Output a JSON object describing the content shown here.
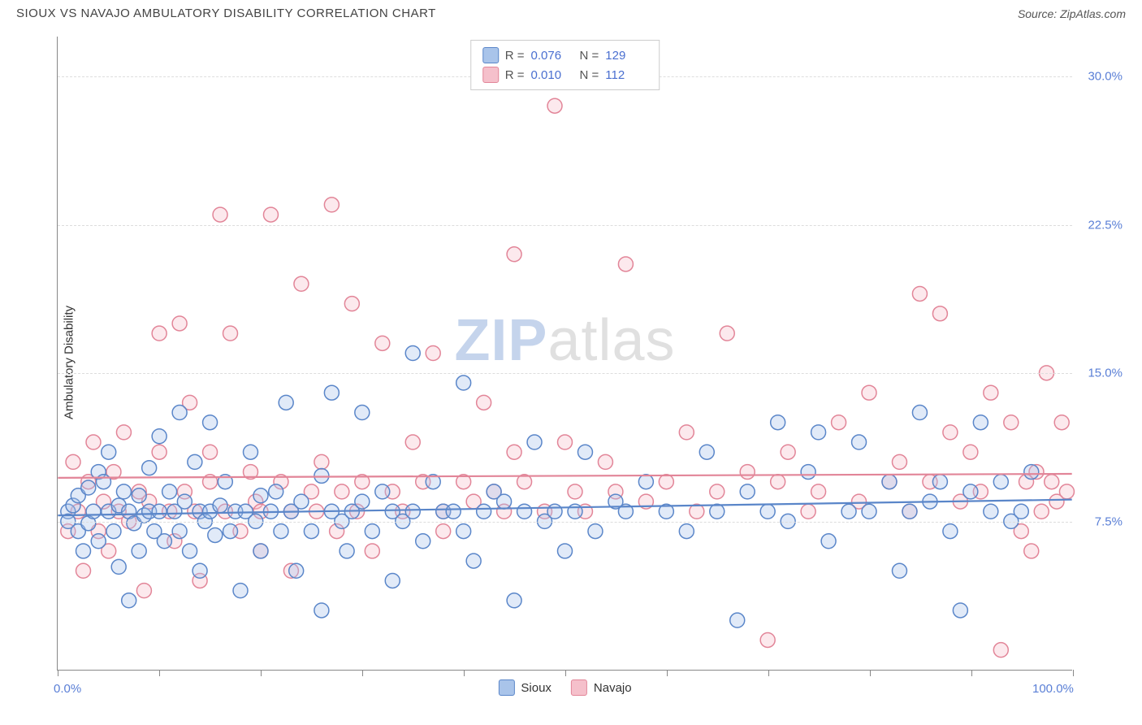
{
  "title": "SIOUX VS NAVAJO AMBULATORY DISABILITY CORRELATION CHART",
  "source": "Source: ZipAtlas.com",
  "ylabel": "Ambulatory Disability",
  "watermark": {
    "a": "ZIP",
    "b": "atlas"
  },
  "chart": {
    "type": "scatter",
    "xlim": [
      0,
      100
    ],
    "ylim": [
      0,
      32
    ],
    "x_ticks": [
      0,
      10,
      20,
      30,
      40,
      50,
      60,
      70,
      80,
      90,
      100
    ],
    "x_tick_labels_shown": {
      "0": "0.0%",
      "100": "100.0%"
    },
    "y_gridlines": [
      7.5,
      15.0,
      22.5,
      30.0
    ],
    "y_tick_labels": {
      "7.5": "7.5%",
      "15.0": "15.0%",
      "22.5": "22.5%",
      "30.0": "30.0%"
    },
    "background_color": "#ffffff",
    "grid_color": "#dddddd",
    "axis_color": "#888888",
    "label_fontsize": 15,
    "tick_fontsize": 15,
    "tick_color": "#5a7fd6",
    "marker_radius": 9,
    "marker_stroke_width": 1.5,
    "marker_fill_opacity": 0.35,
    "trend_line_width": 2.2
  },
  "series": {
    "sioux": {
      "label": "Sioux",
      "fill": "#a9c4ea",
      "stroke": "#5a86c9",
      "trend": {
        "y_at_x0": 7.8,
        "y_at_x100": 8.6
      },
      "R": "0.076",
      "N": "129",
      "points": [
        [
          1,
          8.0
        ],
        [
          1,
          7.5
        ],
        [
          1.5,
          8.3
        ],
        [
          2,
          7.0
        ],
        [
          2,
          8.8
        ],
        [
          2.5,
          6.0
        ],
        [
          3,
          9.2
        ],
        [
          3,
          7.4
        ],
        [
          3.5,
          8.0
        ],
        [
          4,
          10.0
        ],
        [
          4,
          6.5
        ],
        [
          4.5,
          9.5
        ],
        [
          5,
          8.0
        ],
        [
          5,
          11.0
        ],
        [
          5.5,
          7.0
        ],
        [
          6,
          8.3
        ],
        [
          6,
          5.2
        ],
        [
          6.5,
          9.0
        ],
        [
          7,
          8.0
        ],
        [
          7,
          3.5
        ],
        [
          7.5,
          7.4
        ],
        [
          8,
          8.8
        ],
        [
          8,
          6.0
        ],
        [
          8.5,
          7.8
        ],
        [
          9,
          10.2
        ],
        [
          9,
          8.0
        ],
        [
          9.5,
          7.0
        ],
        [
          10,
          11.8
        ],
        [
          10,
          8.0
        ],
        [
          10.5,
          6.5
        ],
        [
          11,
          9.0
        ],
        [
          11.5,
          8.0
        ],
        [
          12,
          13.0
        ],
        [
          12,
          7.0
        ],
        [
          12.5,
          8.5
        ],
        [
          13,
          6.0
        ],
        [
          13.5,
          10.5
        ],
        [
          14,
          8.0
        ],
        [
          14,
          5.0
        ],
        [
          14.5,
          7.5
        ],
        [
          15,
          12.5
        ],
        [
          15,
          8.0
        ],
        [
          15.5,
          6.8
        ],
        [
          16,
          8.3
        ],
        [
          16.5,
          9.5
        ],
        [
          17,
          7.0
        ],
        [
          17.5,
          8.0
        ],
        [
          18,
          4.0
        ],
        [
          18.5,
          8.0
        ],
        [
          19,
          11.0
        ],
        [
          19.5,
          7.5
        ],
        [
          20,
          8.8
        ],
        [
          20,
          6.0
        ],
        [
          21,
          8.0
        ],
        [
          21.5,
          9.0
        ],
        [
          22,
          7.0
        ],
        [
          22.5,
          13.5
        ],
        [
          23,
          8.0
        ],
        [
          23.5,
          5.0
        ],
        [
          24,
          8.5
        ],
        [
          25,
          7.0
        ],
        [
          26,
          9.8
        ],
        [
          26,
          3.0
        ],
        [
          27,
          8.0
        ],
        [
          27,
          14.0
        ],
        [
          28,
          7.5
        ],
        [
          28.5,
          6.0
        ],
        [
          29,
          8.0
        ],
        [
          30,
          13.0
        ],
        [
          30,
          8.5
        ],
        [
          31,
          7.0
        ],
        [
          32,
          9.0
        ],
        [
          33,
          8.0
        ],
        [
          33,
          4.5
        ],
        [
          34,
          7.5
        ],
        [
          35,
          16.0
        ],
        [
          35,
          8.0
        ],
        [
          36,
          6.5
        ],
        [
          37,
          9.5
        ],
        [
          38,
          8.0
        ],
        [
          39,
          8.0
        ],
        [
          40,
          14.5
        ],
        [
          40,
          7.0
        ],
        [
          41,
          5.5
        ],
        [
          42,
          8.0
        ],
        [
          43,
          9.0
        ],
        [
          44,
          8.5
        ],
        [
          45,
          3.5
        ],
        [
          46,
          8.0
        ],
        [
          47,
          11.5
        ],
        [
          48,
          7.5
        ],
        [
          49,
          8.0
        ],
        [
          50,
          6.0
        ],
        [
          51,
          8.0
        ],
        [
          52,
          11.0
        ],
        [
          53,
          7.0
        ],
        [
          55,
          8.5
        ],
        [
          56,
          8.0
        ],
        [
          58,
          9.5
        ],
        [
          60,
          8.0
        ],
        [
          62,
          7.0
        ],
        [
          64,
          11.0
        ],
        [
          65,
          8.0
        ],
        [
          67,
          2.5
        ],
        [
          68,
          9.0
        ],
        [
          70,
          8.0
        ],
        [
          71,
          12.5
        ],
        [
          72,
          7.5
        ],
        [
          74,
          10.0
        ],
        [
          75,
          12.0
        ],
        [
          76,
          6.5
        ],
        [
          78,
          8.0
        ],
        [
          79,
          11.5
        ],
        [
          80,
          8.0
        ],
        [
          82,
          9.5
        ],
        [
          83,
          5.0
        ],
        [
          84,
          8.0
        ],
        [
          85,
          13.0
        ],
        [
          86,
          8.5
        ],
        [
          87,
          9.5
        ],
        [
          88,
          7.0
        ],
        [
          89,
          3.0
        ],
        [
          90,
          9.0
        ],
        [
          91,
          12.5
        ],
        [
          92,
          8.0
        ],
        [
          93,
          9.5
        ],
        [
          94,
          7.5
        ],
        [
          95,
          8.0
        ],
        [
          96,
          10.0
        ]
      ]
    },
    "navajo": {
      "label": "Navajo",
      "fill": "#f5c0cb",
      "stroke": "#e28598",
      "trend": {
        "y_at_x0": 9.7,
        "y_at_x100": 9.9
      },
      "R": "0.010",
      "N": "112",
      "points": [
        [
          1,
          7.0
        ],
        [
          1.5,
          10.5
        ],
        [
          2,
          8.0
        ],
        [
          2.5,
          5.0
        ],
        [
          3,
          9.5
        ],
        [
          3.5,
          11.5
        ],
        [
          4,
          7.0
        ],
        [
          4.5,
          8.5
        ],
        [
          5,
          6.0
        ],
        [
          5.5,
          10.0
        ],
        [
          6,
          8.0
        ],
        [
          6.5,
          12.0
        ],
        [
          7,
          7.5
        ],
        [
          8,
          9.0
        ],
        [
          8.5,
          4.0
        ],
        [
          9,
          8.5
        ],
        [
          10,
          11.0
        ],
        [
          10,
          17.0
        ],
        [
          11,
          8.0
        ],
        [
          11.5,
          6.5
        ],
        [
          12,
          17.5
        ],
        [
          12.5,
          9.0
        ],
        [
          13,
          13.5
        ],
        [
          13.5,
          8.0
        ],
        [
          14,
          4.5
        ],
        [
          15,
          11.0
        ],
        [
          15,
          9.5
        ],
        [
          16,
          23.0
        ],
        [
          16.5,
          8.0
        ],
        [
          17,
          17.0
        ],
        [
          18,
          7.0
        ],
        [
          19,
          10.0
        ],
        [
          19.5,
          8.5
        ],
        [
          20,
          6.0
        ],
        [
          20,
          8.0
        ],
        [
          21,
          23.0
        ],
        [
          22,
          9.5
        ],
        [
          23,
          8.0
        ],
        [
          23,
          5.0
        ],
        [
          24,
          19.5
        ],
        [
          25,
          9.0
        ],
        [
          25.5,
          8.0
        ],
        [
          26,
          10.5
        ],
        [
          27,
          23.5
        ],
        [
          27.5,
          7.0
        ],
        [
          28,
          9.0
        ],
        [
          29,
          18.5
        ],
        [
          29.5,
          8.0
        ],
        [
          30,
          9.5
        ],
        [
          31,
          6.0
        ],
        [
          32,
          16.5
        ],
        [
          33,
          9.0
        ],
        [
          34,
          8.0
        ],
        [
          35,
          11.5
        ],
        [
          36,
          9.5
        ],
        [
          37,
          16.0
        ],
        [
          38,
          8.0
        ],
        [
          38,
          7.0
        ],
        [
          40,
          9.5
        ],
        [
          41,
          8.5
        ],
        [
          42,
          13.5
        ],
        [
          43,
          9.0
        ],
        [
          44,
          8.0
        ],
        [
          45,
          21.0
        ],
        [
          45,
          11.0
        ],
        [
          46,
          9.5
        ],
        [
          48,
          8.0
        ],
        [
          49,
          28.5
        ],
        [
          50,
          11.5
        ],
        [
          51,
          9.0
        ],
        [
          52,
          8.0
        ],
        [
          54,
          10.5
        ],
        [
          55,
          9.0
        ],
        [
          56,
          20.5
        ],
        [
          58,
          8.5
        ],
        [
          60,
          9.5
        ],
        [
          62,
          12.0
        ],
        [
          63,
          8.0
        ],
        [
          65,
          9.0
        ],
        [
          66,
          17.0
        ],
        [
          68,
          10.0
        ],
        [
          70,
          1.5
        ],
        [
          71,
          9.5
        ],
        [
          72,
          11.0
        ],
        [
          74,
          8.0
        ],
        [
          75,
          9.0
        ],
        [
          77,
          12.5
        ],
        [
          79,
          8.5
        ],
        [
          80,
          14.0
        ],
        [
          82,
          9.5
        ],
        [
          83,
          10.5
        ],
        [
          84,
          8.0
        ],
        [
          85,
          19.0
        ],
        [
          86,
          9.5
        ],
        [
          87,
          18.0
        ],
        [
          88,
          12.0
        ],
        [
          89,
          8.5
        ],
        [
          90,
          11.0
        ],
        [
          91,
          9.0
        ],
        [
          92,
          14.0
        ],
        [
          93,
          1.0
        ],
        [
          94,
          12.5
        ],
        [
          95,
          7.0
        ],
        [
          95.5,
          9.5
        ],
        [
          96,
          6.0
        ],
        [
          96.5,
          10.0
        ],
        [
          97,
          8.0
        ],
        [
          97.5,
          15.0
        ],
        [
          98,
          9.5
        ],
        [
          98.5,
          8.5
        ],
        [
          99,
          12.5
        ],
        [
          99.5,
          9.0
        ]
      ]
    }
  }
}
